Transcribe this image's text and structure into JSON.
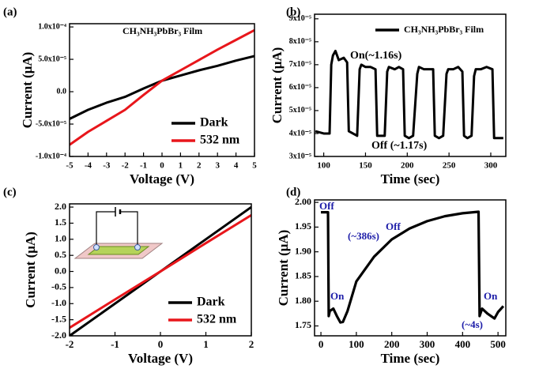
{
  "chart_data": [
    {
      "type": "line",
      "label": "(a)",
      "annotations": [
        "CH₃NH₃PbBr₃ Film"
      ],
      "xlabel": "Voltage (V)",
      "ylabel": "Current (μA)",
      "x": [
        -5,
        -4,
        -3,
        -2,
        -1,
        0,
        1,
        2,
        3,
        4,
        5
      ],
      "series": [
        {
          "name": "Dark",
          "color": "#000000",
          "values": [
            -4.2e-05,
            -2.8e-05,
            -1.7e-05,
            -8e-06,
            5e-06,
            1.7e-05,
            2.5e-05,
            3.3e-05,
            4e-05,
            4.8e-05,
            5.5e-05
          ]
        },
        {
          "name": "532 nm",
          "color": "#e8161b",
          "values": [
            -8.2e-05,
            -6.2e-05,
            -4.5e-05,
            -2.8e-05,
            -5e-06,
            1.7e-05,
            3.3e-05,
            4.9e-05,
            6.5e-05,
            8e-05,
            9.5e-05
          ]
        }
      ],
      "xlim": [
        -5,
        5
      ],
      "xticks": [
        -5,
        -4,
        -3,
        -2,
        -1,
        0,
        1,
        2,
        3,
        4,
        5
      ],
      "ylim": [
        -0.0001,
        0.000105
      ],
      "yticks": [
        {
          "value": 0.0001,
          "label": "1.0x10⁻⁴"
        },
        {
          "value": 5e-05,
          "label": "5.0x10⁻⁵"
        },
        {
          "value": 0,
          "label": "0.0"
        },
        {
          "value": -5e-05,
          "label": "-5.0x10⁻⁵"
        },
        {
          "value": -0.0001,
          "label": "-1.0x10⁻⁴"
        }
      ],
      "legend": "lower right"
    },
    {
      "type": "line",
      "label": "(b)",
      "annotations": [
        "On(~1.16s)",
        "Off (~1.17s)"
      ],
      "xlabel": "Time (sec)",
      "ylabel": "Current (μA)",
      "x": [
        90,
        100,
        107,
        109,
        111,
        114,
        118,
        124,
        128,
        130,
        135,
        140,
        143,
        145,
        150,
        156,
        162,
        164,
        168,
        173,
        176,
        178,
        185,
        190,
        195,
        197,
        202,
        207,
        212,
        214,
        220,
        226,
        231,
        233,
        238,
        243,
        247,
        249,
        255,
        261,
        266,
        268,
        272,
        277,
        280,
        282,
        288,
        295,
        302,
        304,
        310,
        315
      ],
      "series": [
        {
          "name": "CH₃NH₃PbBr₃ Film",
          "color": "#000000",
          "values": [
            4.1e-05,
            4e-05,
            4e-05,
            7e-05,
            7.4e-05,
            7.6e-05,
            7.2e-05,
            7.3e-05,
            7.1e-05,
            4.1e-05,
            4e-05,
            3.9e-05,
            6.8e-05,
            7e-05,
            6.9e-05,
            6.9e-05,
            6.8e-05,
            3.9e-05,
            3.9e-05,
            3.9e-05,
            6.7e-05,
            6.9e-05,
            6.8e-05,
            6.9e-05,
            6.8e-05,
            3.9e-05,
            3.8e-05,
            3.9e-05,
            6.6e-05,
            6.9e-05,
            6.8e-05,
            6.8e-05,
            6.8e-05,
            3.9e-05,
            3.8e-05,
            3.9e-05,
            6.6e-05,
            6.8e-05,
            6.8e-05,
            6.9e-05,
            6.7e-05,
            3.9e-05,
            3.8e-05,
            3.9e-05,
            6.5e-05,
            6.8e-05,
            6.8e-05,
            6.9e-05,
            6.8e-05,
            3.8e-05,
            3.8e-05,
            3.8e-05
          ]
        }
      ],
      "xlim": [
        89,
        318
      ],
      "xticks": [
        100,
        150,
        200,
        250,
        300
      ],
      "ylim": [
        3e-05,
        9.2e-05
      ],
      "yticks": [
        {
          "value": 9e-05,
          "label": "9x10⁻⁵"
        },
        {
          "value": 8e-05,
          "label": "8x10⁻⁵"
        },
        {
          "value": 7e-05,
          "label": "7x10⁻⁵"
        },
        {
          "value": 6e-05,
          "label": "6x10⁻⁵"
        },
        {
          "value": 5e-05,
          "label": "5x10⁻⁵"
        },
        {
          "value": 4e-05,
          "label": "4x10⁻⁵"
        },
        {
          "value": 3e-05,
          "label": "3x10⁻⁵"
        }
      ],
      "legend": "upper right"
    },
    {
      "type": "line",
      "label": "(c)",
      "xlabel": "Voltage (V)",
      "ylabel": "Current (μA)",
      "x": [
        -2,
        -1,
        0,
        1,
        2
      ],
      "series": [
        {
          "name": "Dark",
          "color": "#000000",
          "values": [
            -2.0,
            -1.0,
            0.0,
            1.0,
            2.0
          ]
        },
        {
          "name": "532 nm",
          "color": "#e8161b",
          "values": [
            -1.75,
            -0.87,
            0.0,
            0.88,
            1.75
          ]
        }
      ],
      "xlim": [
        -2,
        2
      ],
      "xticks": [
        -2,
        -1,
        0,
        1,
        2
      ],
      "ylim": [
        -2.0,
        2.1
      ],
      "yticks": [
        {
          "value": 2,
          "label": "2.0"
        },
        1.5,
        {
          "value": 1,
          "label": "1.0"
        },
        0.5,
        {
          "value": 0,
          "label": "0.0"
        },
        -0.5,
        {
          "value": -1,
          "label": "-1.0"
        },
        -1.5,
        {
          "value": -2,
          "label": "-2.0"
        }
      ],
      "legend": "lower right"
    },
    {
      "type": "line",
      "label": "(d)",
      "annotations": [
        "Off",
        "On",
        "Off",
        "(~386s)",
        "On",
        "(~4s)"
      ],
      "annotation_color": "#1c1ca8",
      "xlabel": "Time (sec)",
      "ylabel": "Current (μA)",
      "x": [
        0,
        10,
        20,
        22,
        25,
        35,
        45,
        55,
        62,
        75,
        100,
        150,
        200,
        250,
        300,
        350,
        400,
        445,
        448,
        455,
        470,
        490,
        500,
        515
      ],
      "series": [
        {
          "name": "Current",
          "color": "#000000",
          "values": [
            1.98,
            1.98,
            1.98,
            1.77,
            1.78,
            1.785,
            1.77,
            1.757,
            1.758,
            1.78,
            1.84,
            1.89,
            1.925,
            1.947,
            1.962,
            1.972,
            1.978,
            1.981,
            1.77,
            1.785,
            1.775,
            1.765,
            1.778,
            1.79
          ]
        }
      ],
      "xlim": [
        -18,
        522
      ],
      "xticks": [
        0,
        100,
        200,
        300,
        400,
        500
      ],
      "ylim": [
        1.73,
        2.005
      ],
      "yticks": [
        {
          "value": 2,
          "label": "2.00"
        },
        1.95,
        {
          "value": 1.9,
          "label": "1.90"
        },
        1.85,
        {
          "value": 1.8,
          "label": "1.80"
        },
        1.75
      ]
    }
  ]
}
